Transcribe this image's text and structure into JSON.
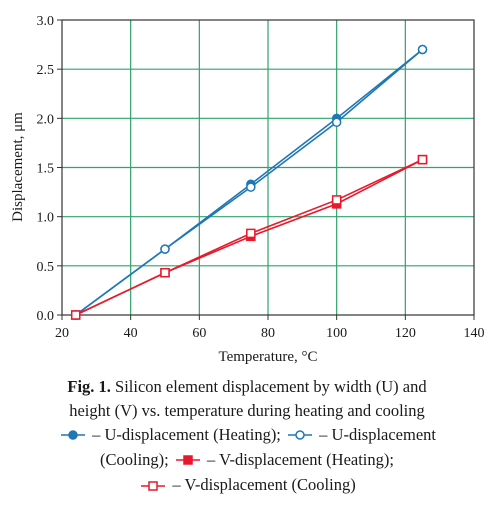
{
  "chart_data": {
    "type": "line",
    "xlabel": "Temperature, °C",
    "ylabel": "Displacement, μm",
    "xlim": [
      20,
      140
    ],
    "ylim": [
      0,
      3.0
    ],
    "x_ticks": [
      "20",
      "40",
      "60",
      "80",
      "100",
      "120",
      "140"
    ],
    "y_ticks": [
      "0.0",
      "0.5",
      "1.0",
      "1.5",
      "2.0",
      "2.5",
      "3.0"
    ],
    "grid": true,
    "colors": {
      "u": "#1f77b4",
      "v": "#e8192c",
      "grid": "#2ea36b"
    },
    "series": [
      {
        "name": "U-displacement (Heating)",
        "marker": "circle",
        "filled": true,
        "color": "#1f77b4",
        "points": [
          [
            24,
            0.0
          ],
          [
            50,
            0.67
          ],
          [
            75,
            1.33
          ],
          [
            100,
            2.0
          ],
          [
            125,
            2.7
          ]
        ]
      },
      {
        "name": "U-displacement (Cooling)",
        "marker": "circle",
        "filled": false,
        "color": "#1f77b4",
        "points": [
          [
            125,
            2.7
          ],
          [
            100,
            1.96
          ],
          [
            75,
            1.3
          ],
          [
            50,
            0.67
          ],
          [
            24,
            0.0
          ]
        ]
      },
      {
        "name": "V-displacement (Heating)",
        "marker": "square",
        "filled": true,
        "color": "#e8192c",
        "points": [
          [
            24,
            0.0
          ],
          [
            50,
            0.43
          ],
          [
            75,
            0.8
          ],
          [
            100,
            1.13
          ],
          [
            125,
            1.58
          ]
        ]
      },
      {
        "name": "V-displacement (Cooling)",
        "marker": "square",
        "filled": false,
        "color": "#e8192c",
        "points": [
          [
            125,
            1.58
          ],
          [
            100,
            1.17
          ],
          [
            75,
            0.83
          ],
          [
            50,
            0.43
          ],
          [
            24,
            0.0
          ]
        ]
      }
    ]
  },
  "caption": {
    "fig_label": "Fig. 1.",
    "line1_text": " Silicon element displacement by width (U) and",
    "line2_text": "height (V) vs. temperature during heating and cooling",
    "legend": [
      {
        "prefix": "",
        "text": " – U-displacement (Heating); "
      },
      {
        "prefix": "",
        "text": " – U-displacement"
      },
      {
        "prefix": "(Cooling); ",
        "text": " – V-displacement (Heating);"
      },
      {
        "prefix": "",
        "text": " – V-displacement (Cooling)"
      }
    ]
  }
}
